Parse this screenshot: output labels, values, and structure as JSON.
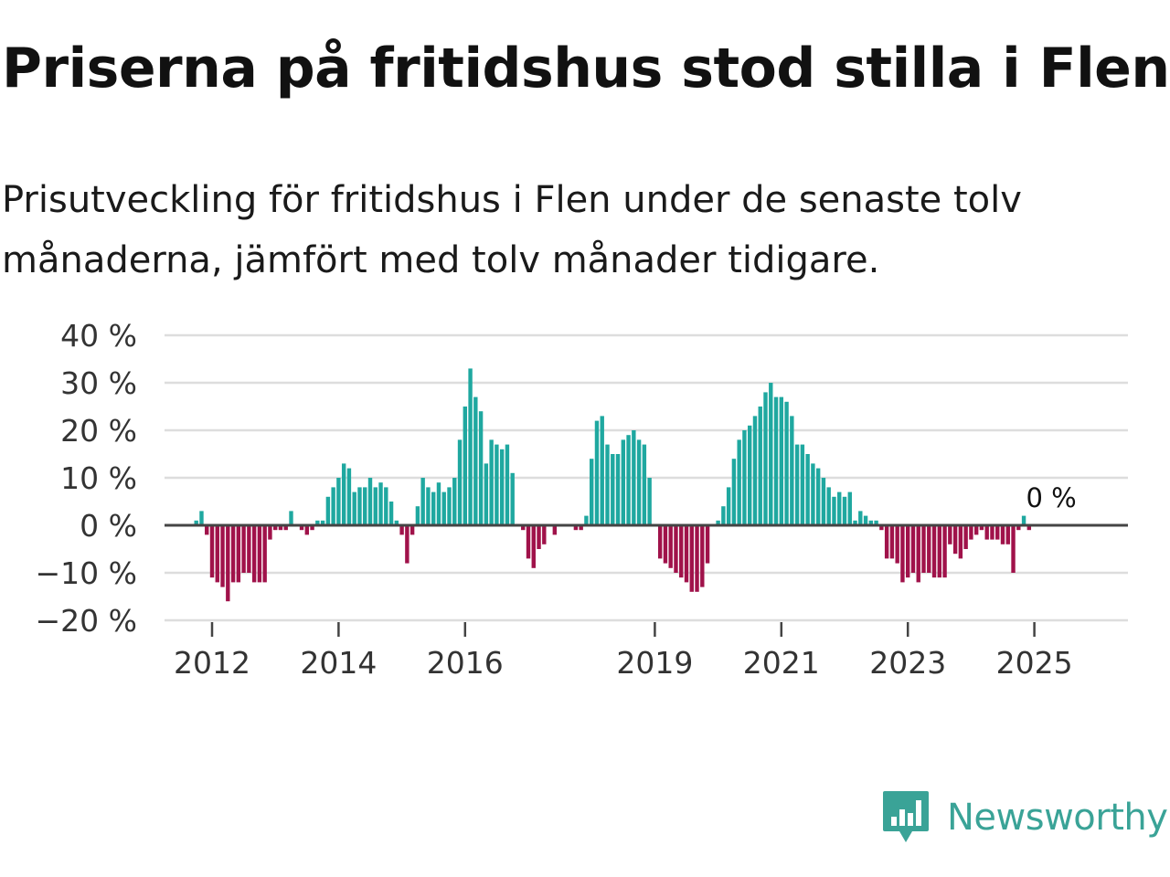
{
  "title": "Priserna på fritidshus stod stilla i Flen",
  "subtitle": "Prisutveckling för fritidshus i Flen under de senaste tolv månaderna, jämfört med tolv månader tidigare.",
  "brand": {
    "name": "Newsworthy",
    "color": "#3aa397",
    "icon": "newsworthy-logo-icon"
  },
  "colors": {
    "positive": "#1fa8a0",
    "negative": "#a0124a",
    "grid": "#dddddd",
    "axis": "#444444"
  },
  "chart_data": {
    "type": "bar",
    "title": "",
    "xlabel": "",
    "ylabel": "",
    "ylim": [
      -20,
      40
    ],
    "y_ticks": [
      {
        "value": 40,
        "label": "40 %"
      },
      {
        "value": 30,
        "label": "30 %"
      },
      {
        "value": 20,
        "label": "20 %"
      },
      {
        "value": 10,
        "label": "10 %"
      },
      {
        "value": 0,
        "label": "0 %"
      },
      {
        "value": -10,
        "label": "−10 %"
      },
      {
        "value": -20,
        "label": "−20 %"
      }
    ],
    "x_ticks": [
      {
        "year": 2012,
        "label": "2012"
      },
      {
        "year": 2014,
        "label": "2014"
      },
      {
        "year": 2016,
        "label": "2016"
      },
      {
        "year": 2019,
        "label": "2019"
      },
      {
        "year": 2021,
        "label": "2021"
      },
      {
        "year": 2023,
        "label": "2023"
      },
      {
        "year": 2025,
        "label": "2025"
      }
    ],
    "start": "2011-10",
    "unit": "%",
    "series": [
      {
        "name": "Prisutveckling",
        "values": [
          1,
          3,
          -2,
          -11,
          -12,
          -13,
          -16,
          -12,
          -12,
          -10,
          -10,
          -12,
          -12,
          -12,
          -3,
          -1,
          -1,
          -1,
          3,
          0,
          -1,
          -2,
          -1,
          1,
          1,
          6,
          8,
          10,
          13,
          12,
          7,
          8,
          8,
          10,
          8,
          9,
          8,
          5,
          1,
          -2,
          -8,
          -2,
          4,
          10,
          8,
          7,
          9,
          7,
          8,
          10,
          18,
          25,
          33,
          27,
          24,
          13,
          18,
          17,
          16,
          17,
          11,
          0,
          -1,
          -7,
          -9,
          -5,
          -4,
          0,
          -2,
          0,
          0,
          0,
          -1,
          -1,
          2,
          14,
          22,
          23,
          17,
          15,
          15,
          18,
          19,
          20,
          18,
          17,
          10,
          0,
          -7,
          -8,
          -9,
          -10,
          -11,
          -12,
          -14,
          -14,
          -13,
          -8,
          0,
          1,
          4,
          8,
          14,
          18,
          20,
          21,
          23,
          25,
          28,
          30,
          27,
          27,
          26,
          23,
          17,
          17,
          15,
          13,
          12,
          10,
          8,
          6,
          7,
          6,
          7,
          1,
          3,
          2,
          1,
          1,
          -1,
          -7,
          -7,
          -8,
          -12,
          -11,
          -10,
          -12,
          -10,
          -10,
          -11,
          -11,
          -11,
          -4,
          -6,
          -7,
          -5,
          -3,
          -2,
          -1,
          -3,
          -3,
          -3,
          -4,
          -4,
          -10,
          -1,
          2,
          -1
        ]
      }
    ],
    "annotation": {
      "label": "0 %",
      "value": 0
    }
  }
}
